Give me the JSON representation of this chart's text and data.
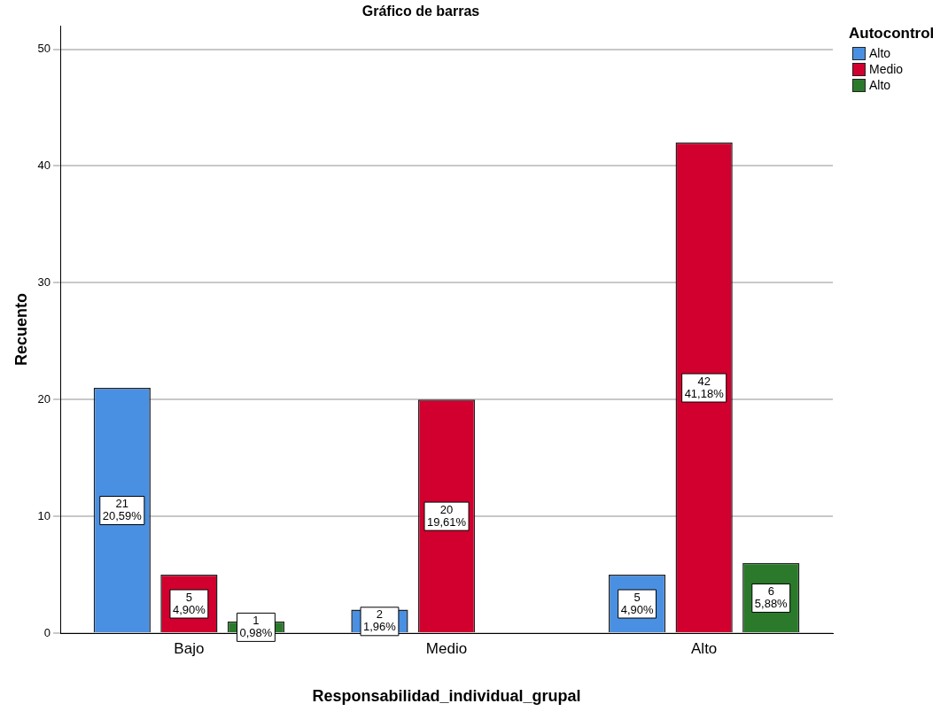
{
  "chart_data": {
    "type": "bar",
    "title": "Gráfico de barras",
    "xlabel": "Responsabilidad_individual_grupal",
    "ylabel": "Recuento",
    "legend_title": "Autocontrol",
    "categories": [
      "Bajo",
      "Medio",
      "Alto"
    ],
    "series": [
      {
        "name": "Alto",
        "color": "#4a90e2",
        "values": [
          21,
          2,
          5
        ],
        "value_labels": [
          "21\n20,59%",
          "2\n1,96%",
          "5\n4,90%"
        ]
      },
      {
        "name": "Medio",
        "color": "#d2002e",
        "values": [
          5,
          20,
          42
        ],
        "value_labels": [
          "5\n4,90%",
          "20\n19,61%",
          "42\n41,18%"
        ]
      },
      {
        "name": "Alto",
        "color": "#2b7a2b",
        "values": [
          1,
          null,
          6
        ],
        "value_labels": [
          "1\n0,98%",
          null,
          "6\n5,88%"
        ]
      }
    ],
    "ylim": [
      0,
      52
    ],
    "yticks": [
      0,
      10,
      20,
      30,
      40,
      50
    ],
    "grid": "y",
    "legend": "top right"
  }
}
